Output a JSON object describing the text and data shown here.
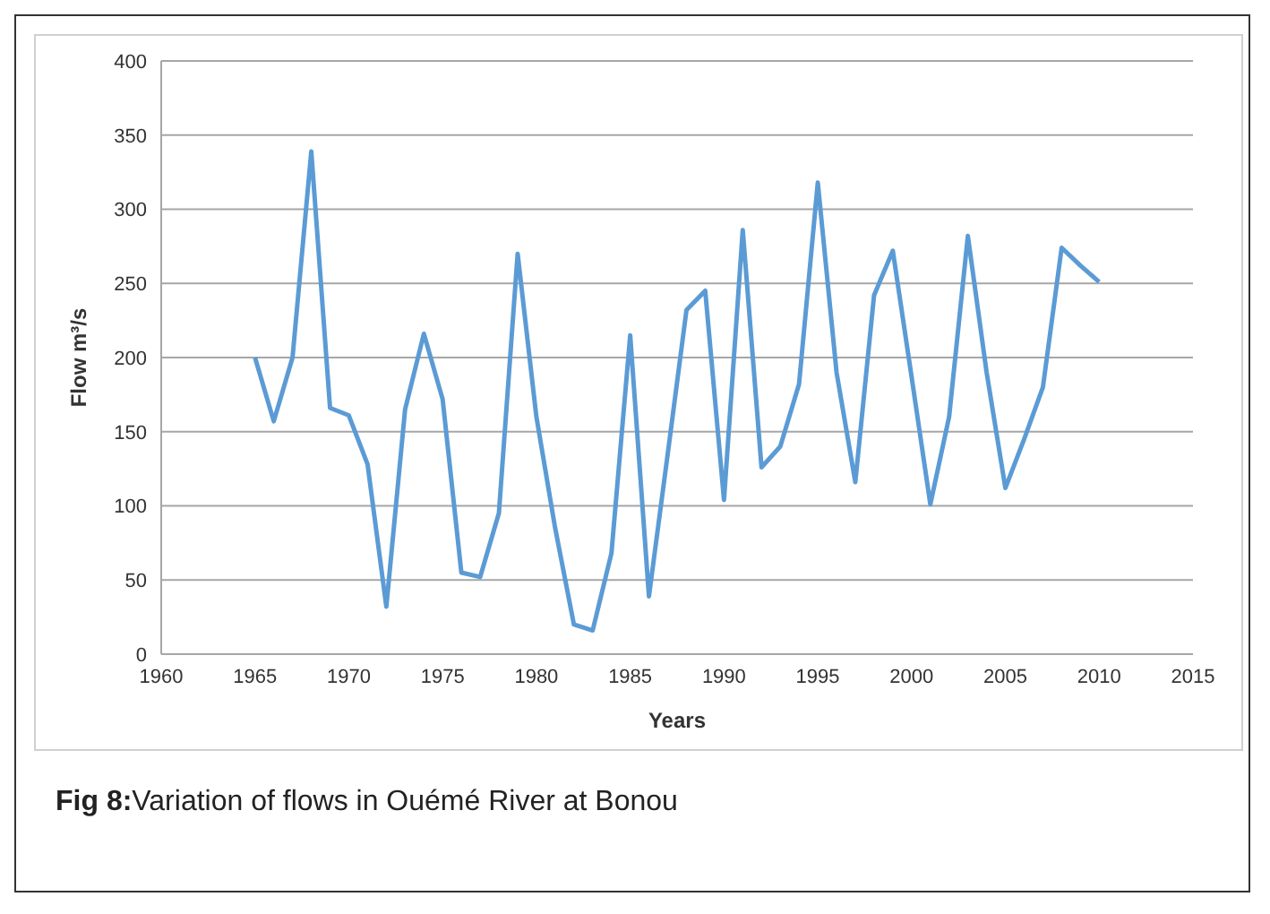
{
  "chart_data": {
    "type": "line",
    "xlabel": "Years",
    "ylabel": "Flow m³/s",
    "annotations": [
      "Fig 8:Variation of flows in Ouémé River at Bonou"
    ],
    "x": [
      1965,
      1966,
      1967,
      1968,
      1969,
      1970,
      1971,
      1972,
      1973,
      1974,
      1975,
      1976,
      1977,
      1978,
      1979,
      1980,
      1981,
      1982,
      1983,
      1984,
      1985,
      1986,
      1987,
      1988,
      1989,
      1990,
      1991,
      1992,
      1993,
      1994,
      1995,
      1996,
      1997,
      1998,
      1999,
      2000,
      2001,
      2002,
      2003,
      2004,
      2005,
      2006,
      2007,
      2008,
      2009,
      2010
    ],
    "series": [
      {
        "color": "#5b9bd5",
        "values": [
          200,
          157,
          200,
          339,
          166,
          161,
          128,
          32,
          165,
          216,
          172,
          55,
          52,
          95,
          270,
          160,
          85,
          20,
          16,
          68,
          215,
          39,
          135,
          232,
          245,
          104,
          286,
          126,
          140,
          182,
          318,
          190,
          116,
          242,
          272,
          187,
          101,
          160,
          282,
          190,
          112,
          145,
          180,
          274,
          262,
          251
        ]
      }
    ],
    "xlim": [
      1960,
      2015
    ],
    "xticks": [
      1960,
      1965,
      1970,
      1975,
      1980,
      1985,
      1990,
      1995,
      2000,
      2005,
      2010,
      2015
    ],
    "ylim": [
      0,
      400
    ],
    "yticks": [
      0,
      50,
      100,
      150,
      200,
      250,
      300,
      350,
      400
    ],
    "grid": "y",
    "legend": false,
    "marker": "none",
    "line_style": "solid"
  }
}
